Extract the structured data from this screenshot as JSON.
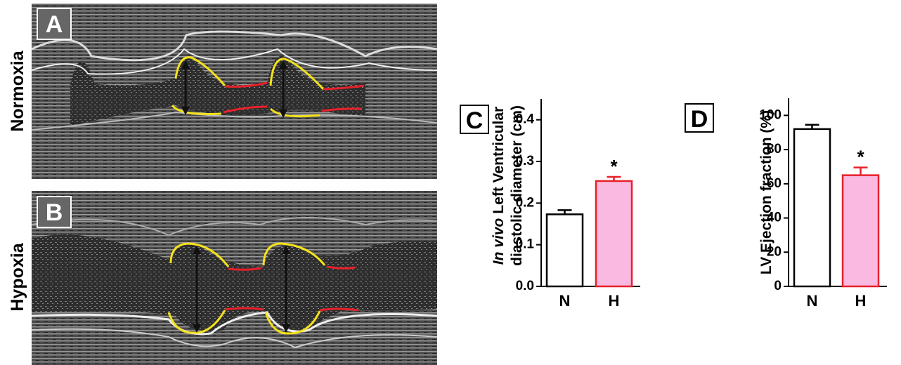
{
  "panels": [
    {
      "label": "A",
      "condition": "Normoxia"
    },
    {
      "label": "B",
      "condition": "Hypoxia"
    }
  ],
  "chart_data": [
    {
      "type": "bar",
      "panel": "C",
      "ylabel_italic": "In vivo",
      "ylabel": [
        "Left Ventricular",
        "diastolic diameter (cm)"
      ],
      "categories": [
        "N",
        "H"
      ],
      "values": [
        0.173,
        0.253
      ],
      "errors": [
        0.01,
        0.01
      ],
      "colors": [
        "#ffffff",
        "#f9b9e0"
      ],
      "edge_colors": [
        "#000000",
        "#e8202a"
      ],
      "error_colors": [
        "#000000",
        "#e8202a"
      ],
      "annotations": [
        null,
        "*"
      ],
      "ylim": [
        0,
        0.45
      ],
      "yticks": [
        {
          "value": 0,
          "label": "0.0"
        },
        0.1,
        0.2,
        0.3,
        0.4
      ]
    },
    {
      "type": "bar",
      "panel": "D",
      "ylabel": [
        "LV Ejection fraction (%)"
      ],
      "categories": [
        "N",
        "H"
      ],
      "values": [
        92,
        65
      ],
      "errors": [
        2.5,
        4.5
      ],
      "colors": [
        "#ffffff",
        "#f9b9e0"
      ],
      "edge_colors": [
        "#000000",
        "#e8202a"
      ],
      "error_colors": [
        "#000000",
        "#e8202a"
      ],
      "annotations": [
        null,
        "*"
      ],
      "ylim": [
        0,
        110
      ],
      "yticks": [
        0,
        20,
        40,
        60,
        80,
        100
      ]
    }
  ]
}
